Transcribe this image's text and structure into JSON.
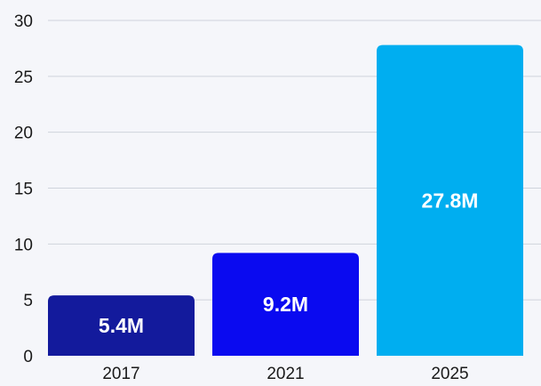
{
  "chart_data": {
    "type": "bar",
    "title": "",
    "xlabel": "",
    "ylabel": "",
    "categories": [
      "2017",
      "2021",
      "2025"
    ],
    "values": [
      5.4,
      9.2,
      27.8
    ],
    "data_labels": [
      "5.4M",
      "9.2M",
      "27.8M"
    ],
    "ylim": [
      0,
      30
    ],
    "yticks": [
      0,
      5,
      10,
      15,
      20,
      25,
      30
    ],
    "bar_colors": [
      "#131a9c",
      "#0a0af0",
      "#00aef0"
    ],
    "grid": true,
    "legend": "none"
  }
}
